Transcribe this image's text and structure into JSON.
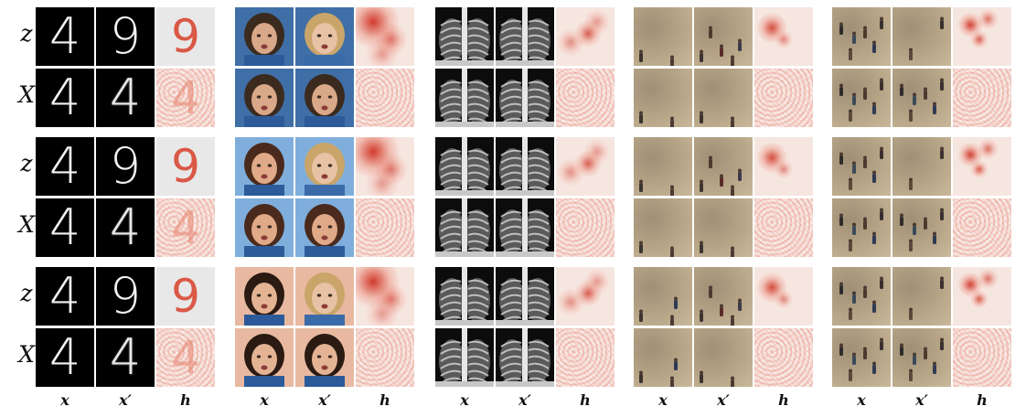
{
  "row_labels": [
    "z",
    "X",
    "z",
    "X",
    "z",
    "X"
  ],
  "column_labels": [
    "x",
    "x′",
    "h"
  ],
  "mnist": {
    "digits_x": [
      "4",
      "4",
      "4",
      "4",
      "4",
      "4"
    ],
    "digits_xprime": [
      "9",
      "4",
      "9",
      "4",
      "9",
      "4"
    ]
  },
  "colors": {
    "background": "#ffffff",
    "heatmap_strong": "#cf2a1a",
    "heatmap_light": "#f4c3b4",
    "heatmap_bg": "#eeeeee",
    "mnist_bg": "#000000",
    "face_bg_blue": "#3f6fa6",
    "xray_bg": "#111111",
    "mall_floor": "#b9a78a"
  }
}
